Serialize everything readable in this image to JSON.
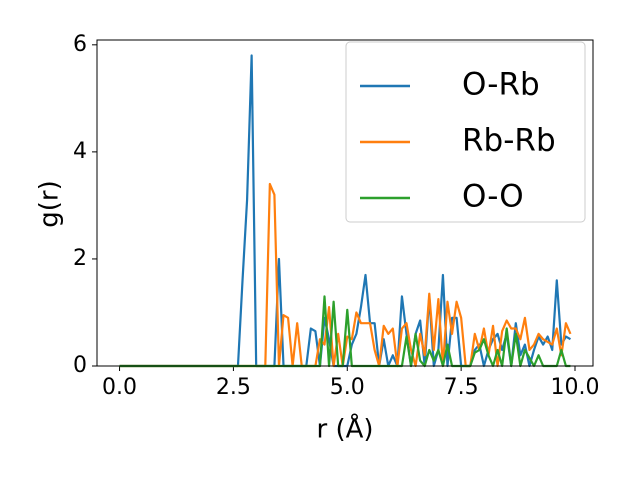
{
  "chart_data": {
    "type": "line",
    "xlabel": "r (Å)",
    "ylabel": "g(r)",
    "x": [
      0.0,
      0.1,
      0.2,
      0.3,
      0.4,
      0.5,
      0.6,
      0.7,
      0.8,
      0.9,
      1.0,
      1.1,
      1.2,
      1.3,
      1.4,
      1.5,
      1.6,
      1.7,
      1.8,
      1.9,
      2.0,
      2.1,
      2.2,
      2.3,
      2.4,
      2.5,
      2.6,
      2.7,
      2.8,
      2.9,
      3.0,
      3.1,
      3.2,
      3.3,
      3.4,
      3.5,
      3.6,
      3.7,
      3.8,
      3.9,
      4.0,
      4.1,
      4.2,
      4.3,
      4.4,
      4.5,
      4.6,
      4.7,
      4.8,
      4.9,
      5.0,
      5.1,
      5.2,
      5.3,
      5.4,
      5.5,
      5.6,
      5.7,
      5.8,
      5.9,
      6.0,
      6.1,
      6.2,
      6.3,
      6.4,
      6.5,
      6.6,
      6.7,
      6.8,
      6.9,
      7.0,
      7.1,
      7.2,
      7.3,
      7.4,
      7.5,
      7.6,
      7.7,
      7.8,
      7.9,
      8.0,
      8.1,
      8.2,
      8.3,
      8.4,
      8.5,
      8.6,
      8.7,
      8.8,
      8.9,
      9.0,
      9.1,
      9.2,
      9.3,
      9.4,
      9.5,
      9.6,
      9.7,
      9.8,
      9.9
    ],
    "series": [
      {
        "name": "O-Rb",
        "color": "#1f77b4",
        "values": [
          0,
          0,
          0,
          0,
          0,
          0,
          0,
          0,
          0,
          0,
          0,
          0,
          0,
          0,
          0,
          0,
          0,
          0,
          0,
          0,
          0,
          0,
          0,
          0,
          0,
          0,
          0,
          1.6,
          3.1,
          5.8,
          0,
          0,
          0,
          0,
          0,
          2.0,
          0,
          0,
          0,
          0,
          0,
          0,
          0.7,
          0.65,
          0,
          0.9,
          0.5,
          0,
          0,
          0,
          0,
          0.4,
          0.6,
          1.1,
          1.7,
          0.8,
          0.8,
          0,
          0.5,
          0,
          0.2,
          0,
          1.3,
          0.6,
          0,
          0.6,
          0.85,
          0,
          1.3,
          0,
          0.3,
          1.7,
          0,
          0.9,
          0.9,
          0,
          0,
          0,
          0.3,
          0.4,
          0,
          0.3,
          0.5,
          0.6,
          0.3,
          0.6,
          0,
          0.8,
          0.2,
          0.4,
          0,
          0.3,
          0.55,
          0.4,
          0.55,
          0.3,
          1.6,
          0.4,
          0.55,
          0.5
        ]
      },
      {
        "name": "Rb-Rb",
        "color": "#ff7f0e",
        "values": [
          0,
          0,
          0,
          0,
          0,
          0,
          0,
          0,
          0,
          0,
          0,
          0,
          0,
          0,
          0,
          0,
          0,
          0,
          0,
          0,
          0,
          0,
          0,
          0,
          0,
          0,
          0,
          0,
          0,
          0,
          0,
          0,
          0,
          3.4,
          3.2,
          0,
          0.95,
          0.9,
          0,
          0.8,
          0,
          0,
          0,
          0,
          0.5,
          0.4,
          1.1,
          0,
          0.6,
          0,
          0.55,
          0.5,
          1.0,
          0.8,
          0.8,
          0.8,
          0.3,
          0,
          0.75,
          0.6,
          0.7,
          0,
          0.7,
          0.8,
          0.3,
          0,
          0.6,
          0.2,
          1.35,
          0.3,
          1.25,
          0,
          1.2,
          0.6,
          1.2,
          0.9,
          0,
          0,
          0.6,
          0.3,
          0.7,
          0.2,
          0.75,
          0,
          0.65,
          0.85,
          0.7,
          0.7,
          0.5,
          0.9,
          0.3,
          0.4,
          0.6,
          0.5,
          0.45,
          0.4,
          0.7,
          0.2,
          0.8,
          0.6
        ]
      },
      {
        "name": "O-O",
        "color": "#2ca02c",
        "values": [
          0,
          0,
          0,
          0,
          0,
          0,
          0,
          0,
          0,
          0,
          0,
          0,
          0,
          0,
          0,
          0,
          0,
          0,
          0,
          0,
          0,
          0,
          0,
          0,
          0,
          0,
          0,
          0,
          0,
          0,
          0,
          0,
          0,
          0,
          0,
          0,
          0,
          0,
          0,
          0,
          0,
          0,
          0,
          0,
          0,
          1.3,
          0,
          1.2,
          0,
          0,
          1.05,
          0,
          0,
          0,
          0,
          0,
          0,
          0,
          0,
          0,
          0,
          0,
          0,
          0.55,
          0,
          0.6,
          0.1,
          0,
          0.3,
          0.1,
          0.3,
          0,
          0.4,
          0,
          0,
          0,
          0,
          0,
          0.25,
          0.3,
          0.5,
          0.2,
          0,
          0.3,
          0,
          0.7,
          0,
          0.6,
          0,
          0.3,
          0.15,
          0,
          0.2,
          0,
          0,
          0,
          0,
          0.3,
          0,
          0
        ]
      }
    ],
    "xlim": [
      -0.495,
      10.395
    ],
    "xticks": [
      {
        "value": 0,
        "label": "0.0"
      },
      {
        "value": 2.5,
        "label": "2.5"
      },
      {
        "value": 5,
        "label": "5.0"
      },
      {
        "value": 7.5,
        "label": "7.5"
      },
      {
        "value": 10,
        "label": "10.0"
      }
    ],
    "ylim": [
      0,
      6.09
    ],
    "yticks": [
      0,
      2,
      4,
      6
    ],
    "grid": false,
    "legend": "upper right"
  }
}
